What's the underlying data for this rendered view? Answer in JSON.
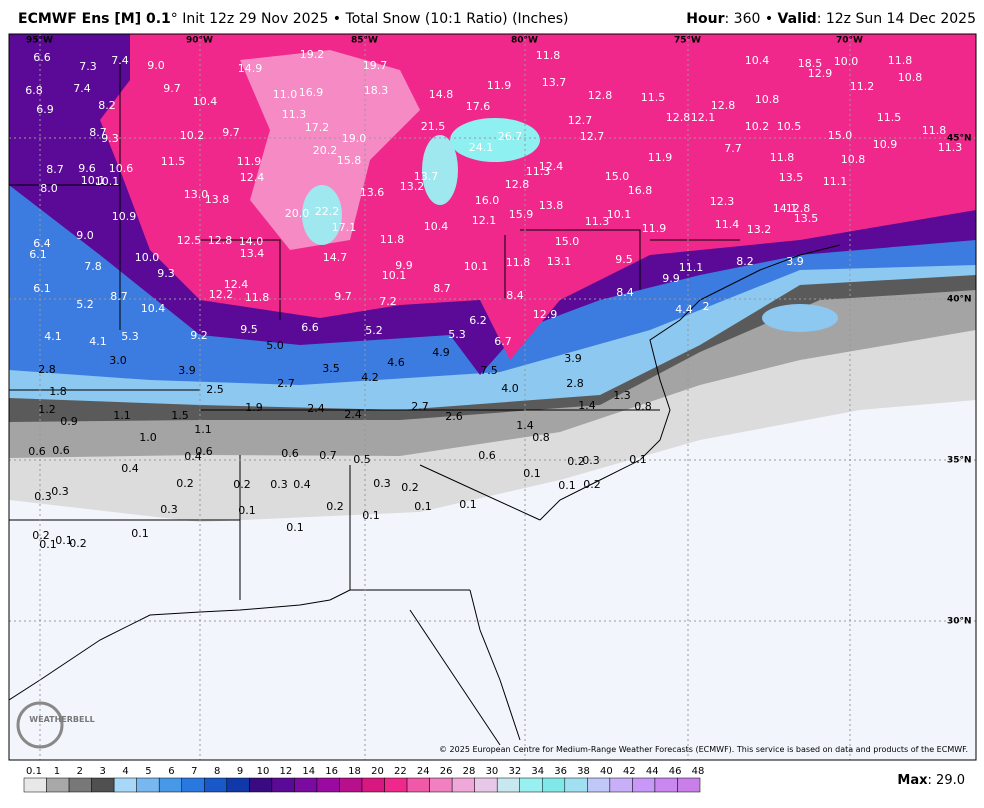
{
  "header": {
    "title_parts": [
      {
        "text": "ECMWF Ens [M] 0.1",
        "bold": true
      },
      {
        "text": "°",
        "bold": false
      },
      {
        "text": " Init 12z 29 Nov 2025 • Total Snow (10:1 Ratio) (Inches)",
        "bold": false
      }
    ],
    "valid_parts": [
      {
        "text": "Hour",
        "bold": true
      },
      {
        "text": ": 360 • ",
        "bold": false
      },
      {
        "text": "Valid",
        "bold": true
      },
      {
        "text": ": 12z Sun 14 Dec 2025",
        "bold": false
      }
    ]
  },
  "map": {
    "longitudes": [
      "95°W",
      "90°W",
      "85°W",
      "80°W",
      "75°W",
      "70°W"
    ],
    "latitudes": [
      "45°N",
      "40°N",
      "35°N",
      "30°N"
    ],
    "labels": [
      "6.6",
      "7.3",
      "7.4",
      "9.0",
      "6.8",
      "7.4",
      "6.9",
      "8.2",
      "9.7",
      "10.4",
      "14.9",
      "19.2",
      "19.7",
      "11.8",
      "10.4",
      "18.5",
      "12.9",
      "10.0",
      "11.8",
      "10.8",
      "13.7",
      "11.9",
      "14.8",
      "16.9",
      "11.0",
      "18.3",
      "12.8",
      "11.5",
      "12.8",
      "10.8",
      "11.2",
      "8.7",
      "9.3",
      "10.2",
      "9.7",
      "11.3",
      "17.2",
      "21.5",
      "17.6",
      "12.7",
      "12.7",
      "12.8",
      "12.1",
      "10.2",
      "10.5",
      "15.0",
      "11.5",
      "11.8",
      "11.3",
      "19.0",
      "20.2",
      "15.8",
      "26.7",
      "24.1",
      "7.7",
      "11.8",
      "10.8",
      "10.9",
      "11.9",
      "8.7",
      "9.6",
      "10.6",
      "11.5",
      "11.9",
      "10.1",
      "10.1",
      "8.0",
      "12.4",
      "12.4",
      "11.3",
      "13.7",
      "15.0",
      "13.2",
      "12.8",
      "13.5",
      "11.1",
      "13.0",
      "13.8",
      "13.6",
      "16.8",
      "16.0",
      "12.3",
      "14.1",
      "12.8",
      "13.5",
      "10.9",
      "20.0",
      "22.2",
      "13.8",
      "15.9",
      "12.1",
      "10.1",
      "11.3",
      "11.4",
      "13.2",
      "17.1",
      "10.4",
      "11.9",
      "9.0",
      "6.4",
      "12.5",
      "12.8",
      "14.0",
      "11.8",
      "15.0",
      "6.1",
      "10.0",
      "13.4",
      "14.7",
      "9.9",
      "9.5",
      "11.1",
      "8.2",
      "3.9",
      "7.8",
      "13.1",
      "10.1",
      "11.8",
      "9.3",
      "10.1",
      "9.9",
      "6.1",
      "12.4",
      "8.7",
      "8.4",
      "8.4",
      "8.7",
      "12.2",
      "11.8",
      "9.7",
      "7.2",
      "5.2",
      "10.4",
      "4.4",
      "12.9",
      "2",
      "6.6",
      "5.2",
      "6.2",
      "5.3",
      "4.1",
      "4.1",
      "5.3",
      "9.2",
      "9.5",
      "5.0",
      "6.7",
      "4.9",
      "3.0",
      "3.9",
      "3.5",
      "4.6",
      "3.9",
      "4.2",
      "7.5",
      "2.8",
      "2.5",
      "2.7",
      "4.0",
      "2.8",
      "1.3",
      "1.8",
      "1.2",
      "1.1",
      "1.5",
      "1.9",
      "2.4",
      "2.4",
      "2.7",
      "2.6",
      "1.4",
      "0.8",
      "0.9",
      "1.1",
      "1.0",
      "1.4",
      "0.8",
      "0.6",
      "0.6",
      "0.6",
      "0.6",
      "0.7",
      "0.5",
      "0.6",
      "0.4",
      "0.4",
      "0.2",
      "0.3",
      "0.1",
      "0.1",
      "0.2",
      "0.2",
      "0.3",
      "0.4",
      "0.3",
      "0.2",
      "0.1",
      "0.2",
      "0.3",
      "0.3",
      "0.2",
      "0.1",
      "0.1",
      "0.1",
      "0.3",
      "0.1",
      "0.1",
      "0.1",
      "0.2",
      "0.1",
      "0.1",
      "0.2"
    ],
    "logo": "WEATHERBELL",
    "copyright": "© 2025 European Centre for Medium-Range Weather Forecasts (ECMWF). This service is based on data and products of the ECMWF."
  },
  "colorbar": {
    "ticks": [
      "0.1",
      "1",
      "2",
      "3",
      "4",
      "5",
      "6",
      "7",
      "8",
      "9",
      "10",
      "12",
      "14",
      "16",
      "18",
      "20",
      "22",
      "24",
      "26",
      "28",
      "30",
      "32",
      "34",
      "36",
      "38",
      "40",
      "42",
      "44",
      "46",
      "48"
    ],
    "colors": [
      "#e8e8e8",
      "#a8a8a8",
      "#787878",
      "#505050",
      "#a8d8f8",
      "#78b8f0",
      "#4898e8",
      "#2878e0",
      "#1858c8",
      "#1038a8",
      "#3a0a80",
      "#5a0a96",
      "#7a0aa0",
      "#9a0aa0",
      "#b8108c",
      "#d81880",
      "#f0288c",
      "#f058a8",
      "#f080c0",
      "#f0a8d8",
      "#e8c8e8",
      "#c8e8f0",
      "#98f0f0",
      "#80e8e8",
      "#a0e0f0",
      "#c0c8f8",
      "#c8b0f8",
      "#c898f8",
      "#c888f0",
      "#c880e8"
    ],
    "max_label": "Max",
    "max_value": "29.0"
  }
}
